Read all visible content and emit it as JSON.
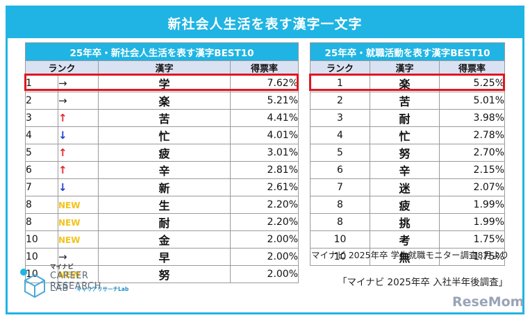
{
  "banner_title": "新社会人生活を表す漢字一文字",
  "left_table": {
    "caption": "25年卒・新社会人生活を表す漢字BEST10",
    "headers": {
      "rank": "ランク",
      "kanji": "漢字",
      "rate": "得票率"
    },
    "rows": [
      {
        "rank": "1",
        "move": "→",
        "move_kind": "same",
        "kanji": "学",
        "rate": "7.62%"
      },
      {
        "rank": "2",
        "move": "→",
        "move_kind": "same",
        "kanji": "楽",
        "rate": "5.21%"
      },
      {
        "rank": "3",
        "move": "↑",
        "move_kind": "up",
        "kanji": "苦",
        "rate": "4.41%"
      },
      {
        "rank": "4",
        "move": "↓",
        "move_kind": "down",
        "kanji": "忙",
        "rate": "4.01%"
      },
      {
        "rank": "5",
        "move": "↑",
        "move_kind": "up",
        "kanji": "疲",
        "rate": "3.01%"
      },
      {
        "rank": "6",
        "move": "↑",
        "move_kind": "up",
        "kanji": "辛",
        "rate": "2.81%"
      },
      {
        "rank": "7",
        "move": "↓",
        "move_kind": "down",
        "kanji": "新",
        "rate": "2.61%"
      },
      {
        "rank": "8",
        "move": "NEW",
        "move_kind": "new",
        "kanji": "生",
        "rate": "2.20%"
      },
      {
        "rank": "8",
        "move": "NEW",
        "move_kind": "new",
        "kanji": "耐",
        "rate": "2.20%"
      },
      {
        "rank": "10",
        "move": "NEW",
        "move_kind": "new",
        "kanji": "金",
        "rate": "2.00%"
      },
      {
        "rank": "10",
        "move": "→",
        "move_kind": "same",
        "kanji": "早",
        "rate": "2.00%"
      },
      {
        "rank": "10",
        "move": "NEW",
        "move_kind": "new",
        "kanji": "努",
        "rate": "2.00%"
      }
    ]
  },
  "right_table": {
    "caption": "25年卒・就職活動を表す漢字BEST10",
    "headers": {
      "rank": "ランク",
      "kanji": "漢字",
      "rate": "得票率"
    },
    "rows": [
      {
        "rank": "1",
        "kanji": "楽",
        "rate": "5.25%"
      },
      {
        "rank": "2",
        "kanji": "苦",
        "rate": "5.01%"
      },
      {
        "rank": "3",
        "kanji": "耐",
        "rate": "3.98%"
      },
      {
        "rank": "4",
        "kanji": "忙",
        "rate": "2.78%"
      },
      {
        "rank": "5",
        "kanji": "努",
        "rate": "2.70%"
      },
      {
        "rank": "6",
        "kanji": "辛",
        "rate": "2.15%"
      },
      {
        "rank": "7",
        "kanji": "迷",
        "rate": "2.07%"
      },
      {
        "rank": "8",
        "kanji": "疲",
        "rate": "1.99%"
      },
      {
        "rank": "8",
        "kanji": "挑",
        "rate": "1.99%"
      },
      {
        "rank": "10",
        "kanji": "考",
        "rate": "1.75%"
      },
      {
        "rank": "10",
        "kanji": "無",
        "rate": "1.75%"
      }
    ]
  },
  "source_note_right": "マイナビ 2025年卒 学生就職モニター調査8月より",
  "source_note_main": "「マイナビ 2025年卒 入社半年後調査」",
  "logo": {
    "brand": "マイナビ",
    "line1": "CAREER RESEARCH",
    "line2": "LAB",
    "sub": "キャリアリサーチLab"
  },
  "watermark": "ReseMom",
  "colors": {
    "accent": "#1fb4e3",
    "highlight": "#e0161e",
    "up": "#e4262a",
    "down": "#1c3fd4",
    "new": "#f4c219",
    "header_fill": "#d9e2f3"
  }
}
